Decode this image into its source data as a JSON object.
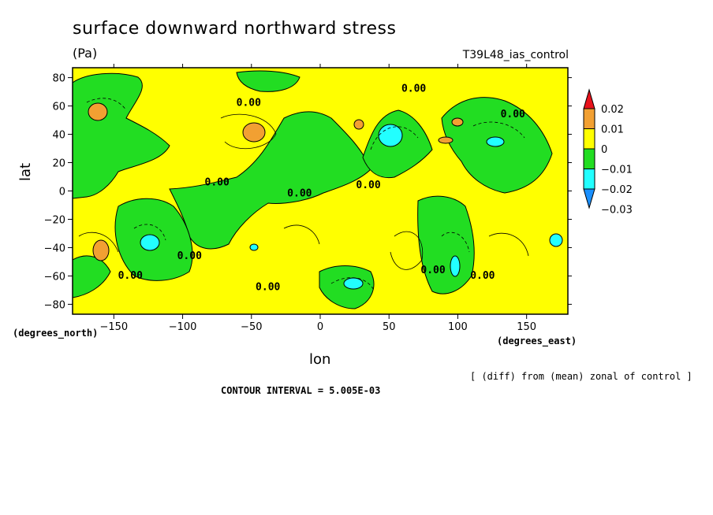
{
  "chart_data": {
    "type": "heatmap",
    "title": "surface downward northward stress",
    "units": "(Pa)",
    "run_label": "T39L48_ias_control",
    "xlabel": "lon",
    "ylabel": "lat",
    "x_units": "(degrees_east)",
    "y_units": "(degrees_north)",
    "xlim": [
      -180,
      180
    ],
    "ylim": [
      -87,
      87
    ],
    "x_ticks": [
      -150,
      -100,
      -50,
      0,
      50,
      100,
      150
    ],
    "y_ticks": [
      80,
      60,
      40,
      20,
      0,
      -20,
      -40,
      -60,
      -80
    ],
    "x_tick_labels": [
      "−150",
      "−100",
      "−50",
      "0",
      "50",
      "100",
      "150"
    ],
    "y_tick_labels": [
      "80",
      "60",
      "40",
      "20",
      "0",
      "−20",
      "−40",
      "−60",
      "−80"
    ],
    "colorbar": {
      "levels": [
        0.02,
        0.01,
        0,
        -0.01,
        -0.02,
        -0.03
      ],
      "labels": [
        "0.02",
        "0.01",
        "0",
        "−0.01",
        "−0.02",
        "−0.03"
      ],
      "colors": [
        "#e8121b",
        "#f2a032",
        "#ffff00",
        "#22dd22",
        "#22ffff",
        "#1a90ff"
      ]
    },
    "contour_labels": [
      {
        "text": "0.00",
        "lon": -52,
        "lat": 60
      },
      {
        "text": "0.00",
        "lon": 68,
        "lat": 70
      },
      {
        "text": "0.00",
        "lon": 140,
        "lat": 52
      },
      {
        "text": "0.00",
        "lon": -75,
        "lat": 4
      },
      {
        "text": "0.00",
        "lon": 35,
        "lat": 2
      },
      {
        "text": "0.00",
        "lon": -15,
        "lat": -4
      },
      {
        "text": "0.00",
        "lon": -95,
        "lat": -48
      },
      {
        "text": "0.00",
        "lon": -138,
        "lat": -62
      },
      {
        "text": "0.00",
        "lon": -38,
        "lat": -70
      },
      {
        "text": "0.00",
        "lon": 82,
        "lat": -58
      },
      {
        "text": "0.00",
        "lon": 118,
        "lat": -62
      }
    ],
    "negative_regions": [
      {
        "level": -0.01,
        "lon": [
          -180,
          -130
        ],
        "lat": [
          -20,
          87
        ]
      },
      {
        "level": -0.01,
        "lon": [
          -90,
          -20
        ],
        "lat": [
          -30,
          60
        ]
      },
      {
        "level": -0.01,
        "lon": [
          30,
          80
        ],
        "lat": [
          0,
          60
        ]
      },
      {
        "level": -0.01,
        "lon": [
          90,
          175
        ],
        "lat": [
          -20,
          60
        ]
      },
      {
        "level": -0.02,
        "lon": [
          -130,
          -118
        ],
        "lat": [
          -45,
          -32
        ]
      },
      {
        "level": -0.02,
        "lon": [
          40,
          58
        ],
        "lat": [
          28,
          45
        ]
      },
      {
        "level": -0.02,
        "lon": [
          15,
          30
        ],
        "lat": [
          -68,
          -60
        ]
      },
      {
        "level": -0.02,
        "lon": [
          88,
          96
        ],
        "lat": [
          -62,
          -45
        ]
      },
      {
        "level": -0.02,
        "lon": [
          118,
          130
        ],
        "lat": [
          30,
          37
        ]
      }
    ],
    "positive_regions": [
      {
        "level": 0.01,
        "lon": [
          -165,
          -150
        ],
        "lat": [
          -48,
          -38
        ]
      },
      {
        "level": 0.01,
        "lon": [
          -168,
          -155
        ],
        "lat": [
          48,
          58
        ]
      },
      {
        "level": 0.01,
        "lon": [
          -55,
          -40
        ],
        "lat": [
          32,
          45
        ]
      },
      {
        "level": 0.01,
        "lon": [
          85,
          97
        ],
        "lat": [
          33,
          37
        ]
      },
      {
        "level": 0.01,
        "lon": [
          22,
          30
        ],
        "lat": [
          43,
          50
        ]
      },
      {
        "level": 0.01,
        "lon": [
          94,
          102
        ],
        "lat": [
          46,
          52
        ]
      }
    ]
  },
  "annotations": {
    "note": "[ (diff) from (mean) zonal of control ]",
    "contour_interval": "CONTOUR INTERVAL = 5.005E-03"
  }
}
